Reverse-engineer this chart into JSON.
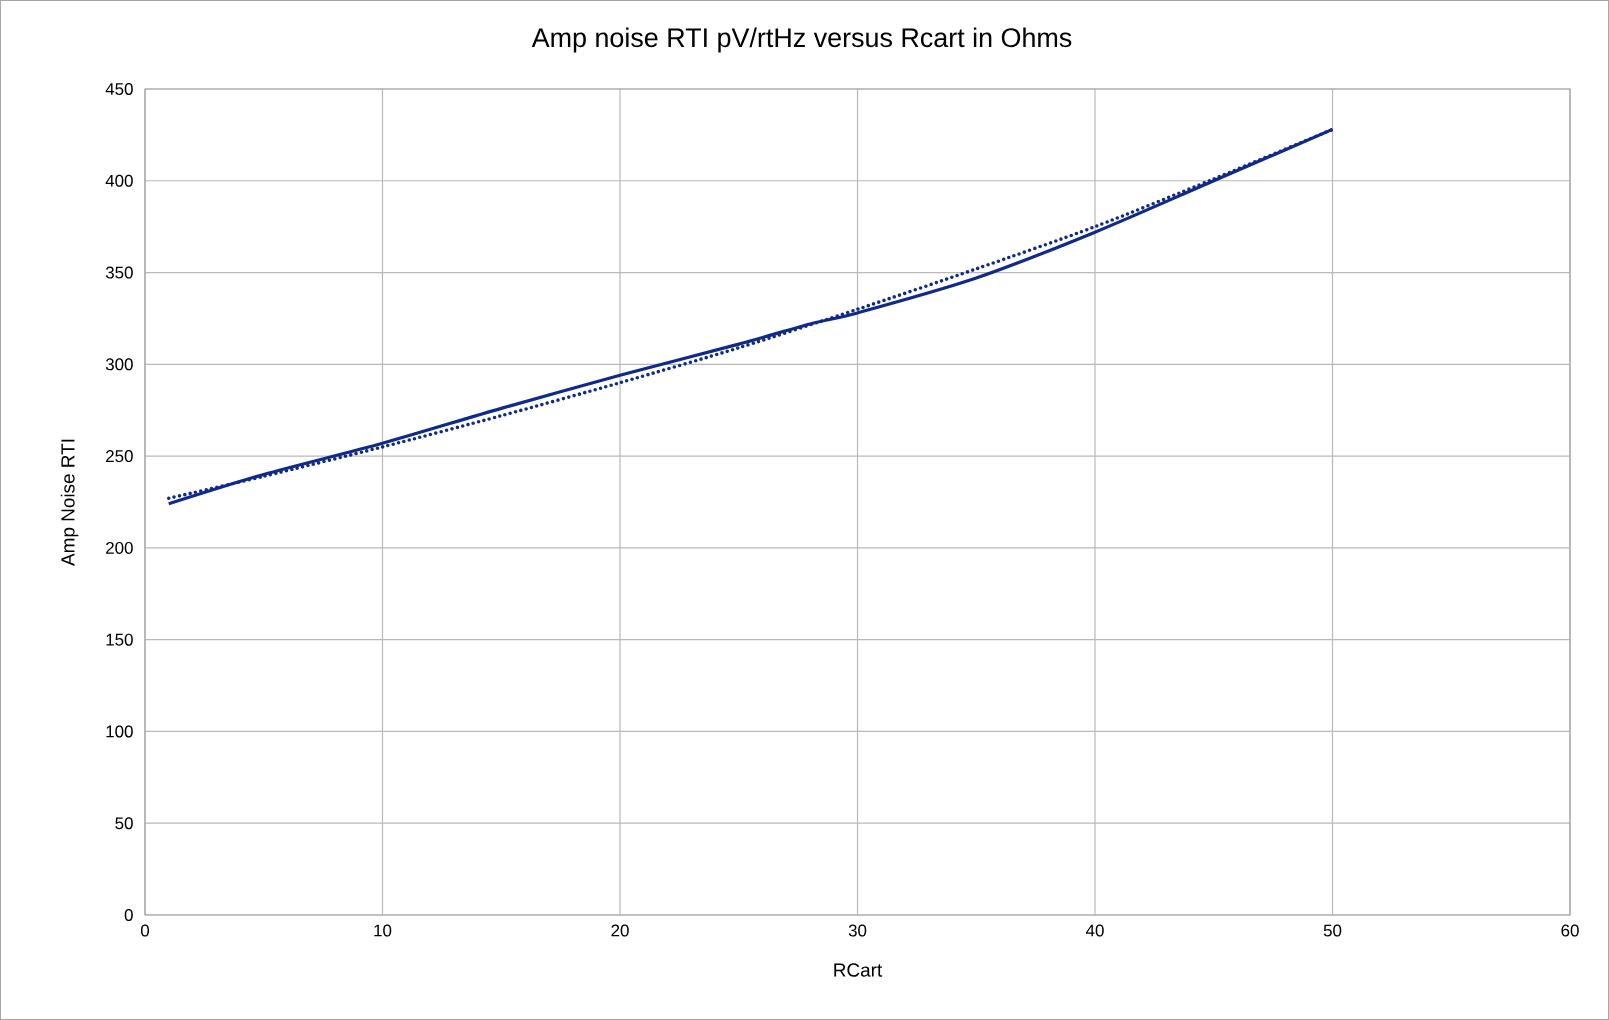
{
  "chart_data": {
    "type": "line",
    "title": "Amp noise RTI pV/rtHz  versus Rcart in Ohms",
    "xlabel": "RCart",
    "ylabel": "Amp Noise RTI",
    "xlim": [
      0,
      60
    ],
    "xticks": [
      0,
      10,
      20,
      30,
      40,
      50,
      60
    ],
    "ylim": [
      0,
      450
    ],
    "yticks": [
      0,
      50,
      100,
      150,
      200,
      250,
      300,
      350,
      400,
      450
    ],
    "grid": true,
    "series": [
      {
        "color": "#0f2a8a",
        "line_style": "solid",
        "x": [
          1,
          5,
          10,
          15,
          20,
          25,
          28,
          30,
          35,
          40,
          45,
          50
        ],
        "values": [
          224,
          240,
          257,
          276,
          294,
          311,
          322,
          328,
          347,
          372,
          400,
          428
        ]
      },
      {
        "color": "#0f2a8a",
        "line_style": "dotted",
        "x": [
          1,
          5,
          10,
          15,
          20,
          25,
          30,
          35,
          40,
          45,
          50
        ],
        "values": [
          227,
          239,
          255,
          272,
          290,
          309,
          330,
          352,
          375,
          401,
          428
        ]
      }
    ]
  }
}
